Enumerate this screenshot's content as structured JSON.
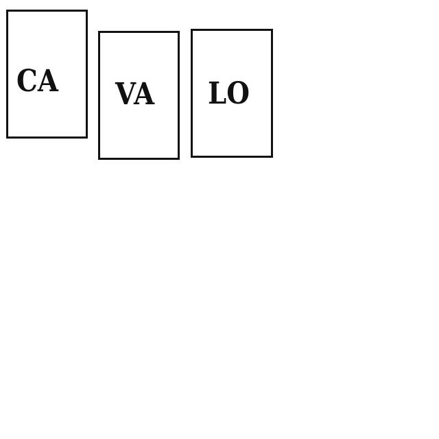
{
  "tiles": [
    {
      "label": "CA"
    },
    {
      "label": "VA"
    },
    {
      "label": "LO"
    }
  ],
  "colors": {
    "border": "#111111",
    "text": "#111111",
    "background": "#ffffff"
  }
}
